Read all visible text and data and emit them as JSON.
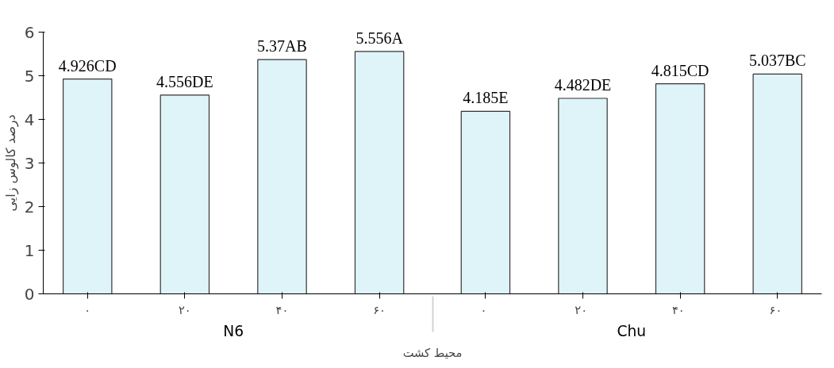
{
  "chart_data": {
    "type": "bar",
    "xlabel": "محیط کشت",
    "ylabel": "درصد کالوس زایی",
    "categories": [
      "۰",
      "۲۰",
      "۴۰",
      "۶۰",
      "۰",
      "۲۰",
      "۴۰",
      "۶۰"
    ],
    "values": [
      4.926,
      4.556,
      5.37,
      5.556,
      4.185,
      4.482,
      4.815,
      5.037
    ],
    "value_labels": [
      "4.926CD",
      "4.556DE",
      "5.37AB",
      "5.556A",
      "4.185E",
      "4.482DE",
      "4.815CD",
      "5.037BC"
    ],
    "color": "#dff4f8",
    "annotations": [
      "N6",
      "Chu"
    ],
    "ylim": [
      0,
      6
    ],
    "yticks": [
      0,
      1,
      2,
      3,
      4,
      5,
      6
    ],
    "grid": false
  }
}
